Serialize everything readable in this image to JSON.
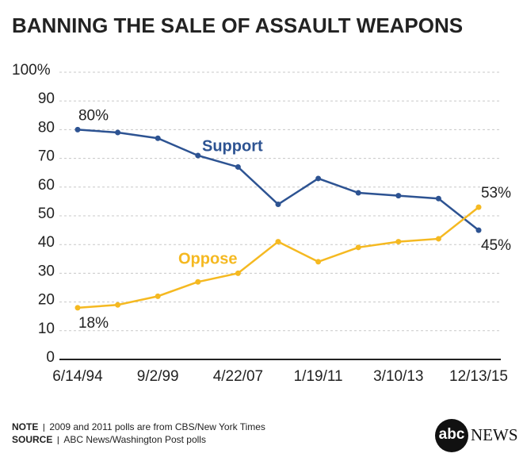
{
  "chart_data": {
    "type": "line",
    "title": "BANNING THE SALE OF ASSAULT WEAPONS",
    "categories": [
      "6/14/94",
      null,
      "9/2/99",
      null,
      "4/22/07",
      null,
      "1/19/11",
      null,
      "3/10/13",
      null,
      "12/13/15"
    ],
    "series": [
      {
        "name": "Support",
        "color": "#2d5392",
        "values": [
          80,
          79,
          77,
          71,
          67,
          54,
          63,
          58,
          57,
          56,
          45
        ],
        "value_labels": [
          "80%",
          null,
          null,
          null,
          null,
          null,
          null,
          null,
          null,
          null,
          "45%"
        ]
      },
      {
        "name": "Oppose",
        "color": "#f5b921",
        "values": [
          18,
          19,
          22,
          27,
          30,
          41,
          34,
          39,
          41,
          42,
          53
        ],
        "value_labels": [
          "18%",
          null,
          null,
          null,
          null,
          null,
          null,
          null,
          null,
          null,
          "53%"
        ]
      }
    ],
    "ylim": [
      0,
      100
    ],
    "yticks": [
      0,
      10,
      20,
      30,
      40,
      50,
      60,
      70,
      80,
      90,
      {
        "value": 100,
        "label": "100%"
      }
    ],
    "grid": true
  },
  "notes": [
    {
      "label": "NOTE",
      "text": "2009 and 2011 polls are from CBS/New York Times"
    },
    {
      "label": "SOURCE",
      "text": "ABC News/Washington Post polls"
    }
  ],
  "logo": {
    "mark": "abc",
    "text": "NEWS"
  }
}
